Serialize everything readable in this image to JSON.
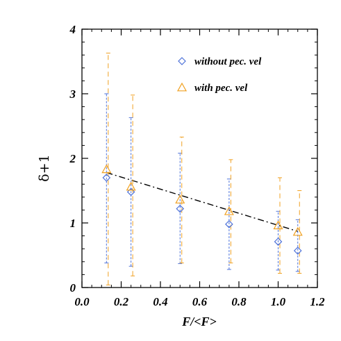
{
  "chart_data": {
    "type": "scatter",
    "xlabel": "F/<F>",
    "ylabel": "δ+1",
    "xlim": [
      0.0,
      1.2
    ],
    "ylim": [
      0,
      4
    ],
    "xticks": [
      "0.0",
      "0.2",
      "0.4",
      "0.6",
      "0.8",
      "1.0",
      "1.2"
    ],
    "yticks": [
      "0",
      "1",
      "2",
      "3",
      "4"
    ],
    "xtick_values": [
      0.0,
      0.2,
      0.4,
      0.6,
      0.8,
      1.0,
      1.2
    ],
    "ytick_values": [
      0,
      1,
      2,
      3,
      4
    ],
    "grid": false,
    "legend_position": "top-right",
    "series": [
      {
        "name": "without pec. vel",
        "marker": "diamond",
        "color": "#4f73d9",
        "x": [
          0.125,
          0.25,
          0.5,
          0.75,
          1.0,
          1.1
        ],
        "y": [
          1.7,
          1.48,
          1.22,
          0.98,
          0.71,
          0.57
        ],
        "err_low": [
          0.38,
          0.33,
          0.37,
          0.28,
          0.27,
          0.25
        ],
        "err_high": [
          3.0,
          2.63,
          2.08,
          1.68,
          1.18,
          1.05
        ]
      },
      {
        "name": "with pec. vel",
        "marker": "triangle",
        "color": "#f0a020",
        "x": [
          0.125,
          0.25,
          0.5,
          0.75,
          1.0,
          1.1
        ],
        "y": [
          1.83,
          1.56,
          1.36,
          1.18,
          0.96,
          0.86
        ],
        "err_low": [
          0.04,
          0.18,
          0.38,
          0.38,
          0.22,
          0.22
        ],
        "err_high": [
          3.63,
          2.98,
          2.33,
          1.98,
          1.7,
          1.5
        ]
      }
    ],
    "fit_line": {
      "style": "dash-dot",
      "color": "#000000",
      "x": [
        0.125,
        1.1
      ],
      "y": [
        1.78,
        0.87
      ]
    }
  }
}
